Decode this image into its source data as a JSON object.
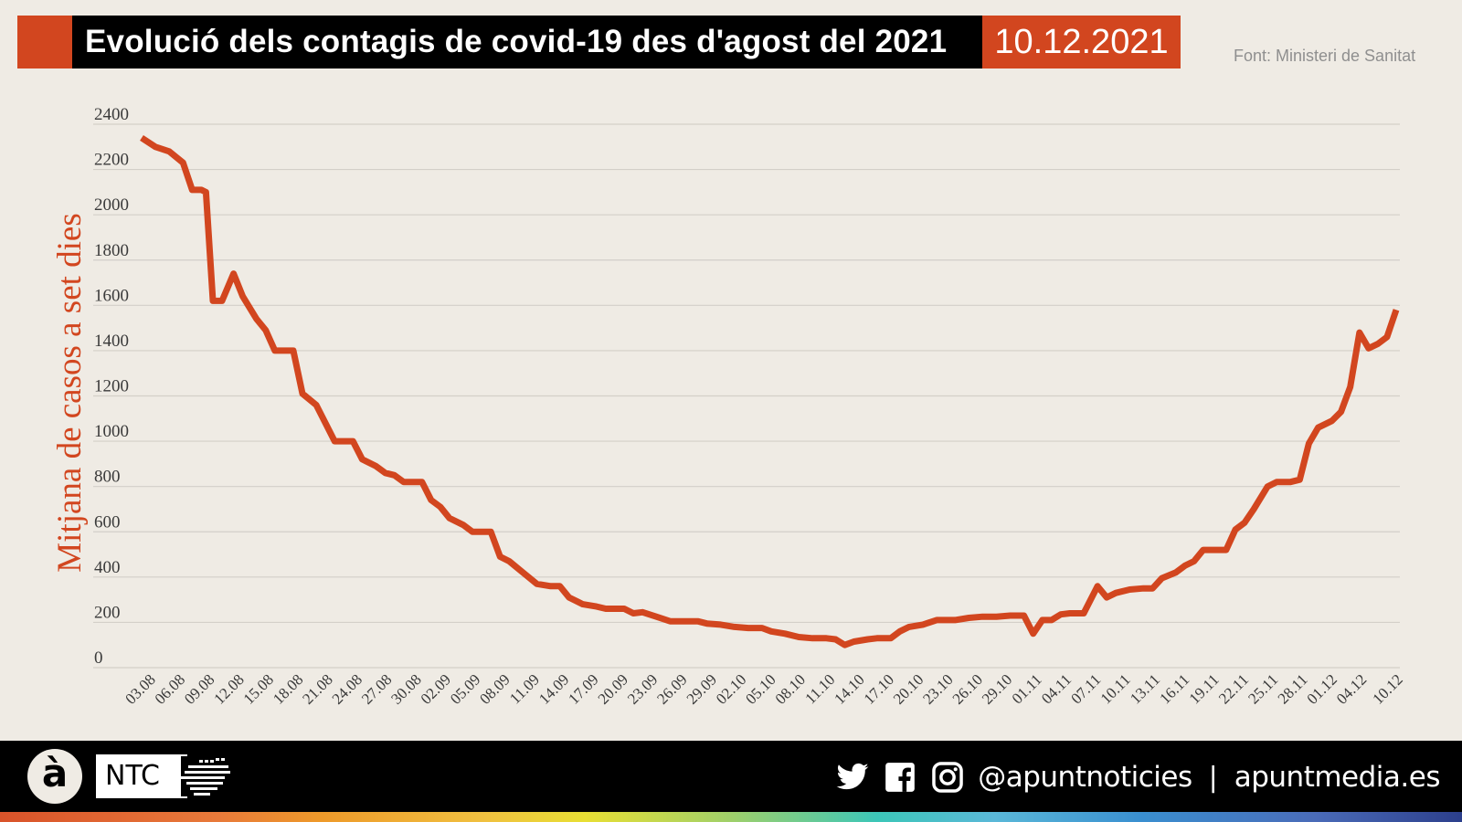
{
  "header": {
    "title": "Evolució dels contagis de covid-19 des d'agost del 2021",
    "date": "10.12.2021",
    "source": "Font: Ministeri de Sanitat"
  },
  "colors": {
    "accent": "#d2461f",
    "background": "#efebe4",
    "gridline": "#d3cfc8",
    "tick_text": "#3a3a3a",
    "title_bar": "#000000"
  },
  "footer": {
    "logo_letter": "à",
    "logo_text": "NTC",
    "icons": [
      "twitter-icon",
      "facebook-icon",
      "instagram-icon"
    ],
    "handle": "@apuntnoticies",
    "separator": "|",
    "site": "apuntmedia.es"
  },
  "chart_data": {
    "type": "line",
    "title": "Evolució dels contagis de covid-19 des d'agost del 2021",
    "subtitle": "10.12.2021",
    "source": "Font: Ministeri de Sanitat",
    "xlabel": "",
    "ylabel": "Mitjana de casos a set dies",
    "ylim": [
      0,
      2400
    ],
    "yticks": [
      0,
      200,
      400,
      600,
      800,
      1000,
      1200,
      1400,
      1600,
      1800,
      2000,
      2200,
      2400
    ],
    "grid": true,
    "legend": "none",
    "categories": [
      "03.08",
      "06.08",
      "09.08",
      "12.08",
      "15.08",
      "18.08",
      "21.08",
      "24.08",
      "27.08",
      "30.08",
      "02.09",
      "05.09",
      "08.09",
      "11.09",
      "14.09",
      "17.09",
      "20.09",
      "23.09",
      "26.09",
      "29.09",
      "02.10",
      "05.10",
      "08.10",
      "11.10",
      "14.10",
      "17.10",
      "20.10",
      "23.10",
      "26.10",
      "29.10",
      "01.11",
      "04.11",
      "07.11",
      "10.11",
      "13.11",
      "16.11",
      "19.11",
      "22.11",
      "25.11",
      "28.11",
      "01.12",
      "04.12",
      "10.12"
    ],
    "series": [
      {
        "name": "Mitjana de casos a set dies",
        "color": "#d2461f",
        "values": [
          2320,
          2120,
          1620,
          1480,
          1400,
          1120,
          1000,
          920,
          820,
          680,
          600,
          460,
          360,
          290,
          260,
          240,
          210,
          200,
          185,
          175,
          150,
          130,
          115,
          125,
          130,
          175,
          210,
          220,
          225,
          225,
          215,
          240,
          320,
          350,
          355,
          430,
          520,
          560,
          810,
          825,
          1060,
          1410,
          1580
        ]
      }
    ],
    "path_points": [
      [
        0,
        2340
      ],
      [
        0.3,
        2300
      ],
      [
        0.6,
        2280
      ],
      [
        0.9,
        2230
      ],
      [
        1.1,
        2110
      ],
      [
        1.3,
        2110
      ],
      [
        1.4,
        2100
      ],
      [
        1.55,
        1620
      ],
      [
        1.75,
        1620
      ],
      [
        2.0,
        1740
      ],
      [
        2.2,
        1640
      ],
      [
        2.5,
        1540
      ],
      [
        2.7,
        1490
      ],
      [
        2.9,
        1400
      ],
      [
        3.3,
        1400
      ],
      [
        3.5,
        1210
      ],
      [
        3.8,
        1160
      ],
      [
        4.0,
        1080
      ],
      [
        4.2,
        1000
      ],
      [
        4.6,
        1000
      ],
      [
        4.8,
        920
      ],
      [
        5.1,
        890
      ],
      [
        5.3,
        860
      ],
      [
        5.5,
        850
      ],
      [
        5.7,
        820
      ],
      [
        6.1,
        820
      ],
      [
        6.3,
        740
      ],
      [
        6.5,
        710
      ],
      [
        6.7,
        660
      ],
      [
        7.0,
        630
      ],
      [
        7.2,
        600
      ],
      [
        7.6,
        600
      ],
      [
        7.8,
        490
      ],
      [
        8.0,
        470
      ],
      [
        8.3,
        420
      ],
      [
        8.6,
        370
      ],
      [
        8.9,
        360
      ],
      [
        9.1,
        360
      ],
      [
        9.3,
        310
      ],
      [
        9.6,
        280
      ],
      [
        9.9,
        270
      ],
      [
        10.1,
        260
      ],
      [
        10.5,
        260
      ],
      [
        10.7,
        240
      ],
      [
        10.9,
        245
      ],
      [
        11.2,
        225
      ],
      [
        11.5,
        205
      ],
      [
        11.8,
        205
      ],
      [
        12.1,
        205
      ],
      [
        12.3,
        195
      ],
      [
        12.6,
        190
      ],
      [
        12.9,
        180
      ],
      [
        13.2,
        175
      ],
      [
        13.5,
        175
      ],
      [
        13.7,
        160
      ],
      [
        14.0,
        150
      ],
      [
        14.3,
        135
      ],
      [
        14.6,
        130
      ],
      [
        14.9,
        130
      ],
      [
        15.1,
        125
      ],
      [
        15.3,
        100
      ],
      [
        15.5,
        115
      ],
      [
        15.8,
        125
      ],
      [
        16.0,
        130
      ],
      [
        16.3,
        130
      ],
      [
        16.5,
        160
      ],
      [
        16.7,
        180
      ],
      [
        17.0,
        190
      ],
      [
        17.3,
        210
      ],
      [
        17.7,
        210
      ],
      [
        18.0,
        220
      ],
      [
        18.3,
        225
      ],
      [
        18.6,
        225
      ],
      [
        18.9,
        230
      ],
      [
        19.2,
        230
      ],
      [
        19.4,
        150
      ],
      [
        19.6,
        210
      ],
      [
        19.8,
        210
      ],
      [
        20.0,
        235
      ],
      [
        20.2,
        240
      ],
      [
        20.5,
        240
      ],
      [
        20.8,
        360
      ],
      [
        21.0,
        310
      ],
      [
        21.2,
        330
      ],
      [
        21.5,
        345
      ],
      [
        21.8,
        350
      ],
      [
        22.0,
        350
      ],
      [
        22.2,
        395
      ],
      [
        22.5,
        420
      ],
      [
        22.7,
        450
      ],
      [
        22.9,
        470
      ],
      [
        23.1,
        520
      ],
      [
        23.4,
        520
      ],
      [
        23.6,
        520
      ],
      [
        23.8,
        610
      ],
      [
        24.0,
        640
      ],
      [
        24.2,
        700
      ],
      [
        24.5,
        800
      ],
      [
        24.7,
        820
      ],
      [
        25.0,
        820
      ],
      [
        25.2,
        830
      ],
      [
        25.4,
        990
      ],
      [
        25.6,
        1060
      ],
      [
        25.9,
        1090
      ],
      [
        26.1,
        1130
      ],
      [
        26.3,
        1240
      ],
      [
        26.5,
        1480
      ],
      [
        26.7,
        1410
      ],
      [
        26.9,
        1430
      ],
      [
        27.1,
        1460
      ],
      [
        27.3,
        1580
      ]
    ]
  }
}
